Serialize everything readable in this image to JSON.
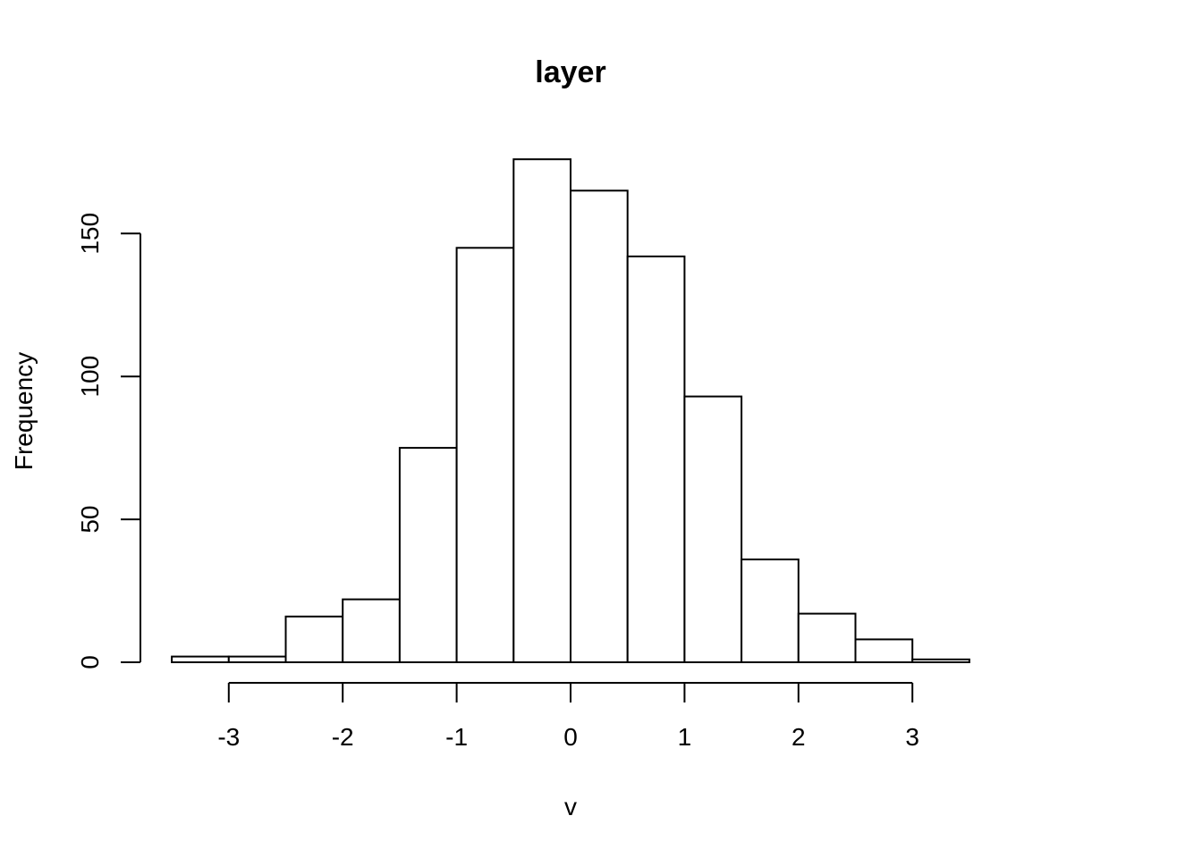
{
  "chart_data": {
    "type": "bar",
    "title": "layer",
    "xlabel": "v",
    "ylabel": "Frequency",
    "bins": [
      {
        "x0": -3.5,
        "x1": -3.0,
        "count": 2
      },
      {
        "x0": -3.0,
        "x1": -2.5,
        "count": 2
      },
      {
        "x0": -2.5,
        "x1": -2.0,
        "count": 16
      },
      {
        "x0": -2.0,
        "x1": -1.5,
        "count": 22
      },
      {
        "x0": -1.5,
        "x1": -1.0,
        "count": 75
      },
      {
        "x0": -1.0,
        "x1": -0.5,
        "count": 145
      },
      {
        "x0": -0.5,
        "x1": 0.0,
        "count": 176
      },
      {
        "x0": 0.0,
        "x1": 0.5,
        "count": 165
      },
      {
        "x0": 0.5,
        "x1": 1.0,
        "count": 142
      },
      {
        "x0": 1.0,
        "x1": 1.5,
        "count": 93
      },
      {
        "x0": 1.5,
        "x1": 2.0,
        "count": 36
      },
      {
        "x0": 2.0,
        "x1": 2.5,
        "count": 17
      },
      {
        "x0": 2.5,
        "x1": 3.0,
        "count": 8
      },
      {
        "x0": 3.0,
        "x1": 3.5,
        "count": 1
      }
    ],
    "xlim": [
      -3.5,
      3.5
    ],
    "ylim": [
      0,
      180
    ],
    "x_ticks": [
      -3,
      -2,
      -1,
      0,
      1,
      2,
      3
    ],
    "x_tick_labels": [
      "-3",
      "-2",
      "-1",
      "0",
      "1",
      "2",
      "3"
    ],
    "y_ticks": [
      0,
      50,
      100,
      150
    ],
    "y_tick_labels": [
      "0",
      "50",
      "100",
      "150"
    ],
    "grid": false,
    "legend": "none"
  }
}
